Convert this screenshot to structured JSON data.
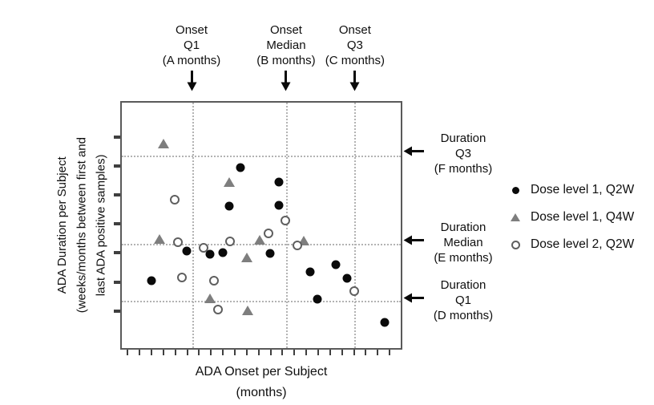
{
  "chart_data": {
    "type": "scatter",
    "title": "",
    "xlabel_line1": "ADA Onset per Subject",
    "xlabel_line2": "(months)",
    "ylabel_line1": "ADA Duration per Subject",
    "ylabel_line2": "(weeks/months between first and",
    "ylabel_line3": "last ADA positive samples)",
    "axis_note": "axes carry unlabeled tick marks only; point coordinates are percent of plot area, x from left edge, y from top edge",
    "tick_labels": "none",
    "series": [
      {
        "name": "Dose level 1, Q2W",
        "marker": "filled-circle",
        "color": "#0a0a0a",
        "points": [
          [
            10.5,
            72.6
          ],
          [
            23.3,
            60.3
          ],
          [
            31.5,
            61.9
          ],
          [
            36.1,
            61.0
          ],
          [
            38.6,
            42.3
          ],
          [
            42.6,
            26.5
          ],
          [
            53.1,
            61.6
          ],
          [
            56.3,
            32.3
          ],
          [
            56.3,
            41.9
          ],
          [
            67.6,
            69.0
          ],
          [
            70.2,
            80.0
          ],
          [
            76.7,
            66.1
          ],
          [
            80.7,
            71.6
          ],
          [
            94.3,
            89.7
          ]
        ]
      },
      {
        "name": "Dose level 1, Q4W",
        "marker": "filled-triangle",
        "color": "#7e7e7e",
        "points": [
          [
            13.6,
            55.5
          ],
          [
            14.8,
            16.8
          ],
          [
            31.5,
            79.7
          ],
          [
            38.4,
            32.3
          ],
          [
            44.9,
            63.2
          ],
          [
            45.2,
            84.8
          ],
          [
            49.4,
            55.8
          ],
          [
            65.1,
            56.1
          ]
        ]
      },
      {
        "name": "Dose level 2, Q2W",
        "marker": "open-circle",
        "color": "#ffffff",
        "stroke": "#5f5f5f",
        "points": [
          [
            19.0,
            39.7
          ],
          [
            20.2,
            56.8
          ],
          [
            21.6,
            71.3
          ],
          [
            29.3,
            59.0
          ],
          [
            33.0,
            72.6
          ],
          [
            34.4,
            84.2
          ],
          [
            38.9,
            56.5
          ],
          [
            52.6,
            53.2
          ],
          [
            58.5,
            48.1
          ],
          [
            62.8,
            58.1
          ],
          [
            83.2,
            76.8
          ]
        ]
      }
    ],
    "reference_lines": {
      "style": "dashed",
      "color": "#b3b3b3",
      "vertical_x_pct": [
        25.3,
        58.8,
        83.2
      ],
      "horizontal_y_pct": [
        21.6,
        57.4,
        80.6
      ]
    },
    "x_ticks": {
      "count": 23,
      "start_pct": 1.8,
      "step_pct": 4.27
    },
    "y_ticks": {
      "count": 7,
      "start_pct": 13.5,
      "step_pct": 11.78
    }
  },
  "annotations": {
    "top": [
      {
        "id": "onset-q1",
        "lines": [
          "Onset",
          "Q1",
          "(A months)"
        ],
        "arrow": "down"
      },
      {
        "id": "onset-median",
        "lines": [
          "Onset",
          "Median",
          "(B months)"
        ],
        "arrow": "down"
      },
      {
        "id": "onset-q3",
        "lines": [
          "Onset",
          "Q3",
          "(C months)"
        ],
        "arrow": "down"
      }
    ],
    "right": [
      {
        "id": "duration-q3",
        "lines": [
          "Duration",
          "Q3",
          "(F months)"
        ],
        "arrow": "left"
      },
      {
        "id": "duration-median",
        "lines": [
          "Duration",
          "Median",
          "(E months)"
        ],
        "arrow": "left"
      },
      {
        "id": "duration-q1",
        "lines": [
          "Duration",
          "Q1",
          "(D months)"
        ],
        "arrow": "left"
      }
    ]
  },
  "legend": {
    "items": [
      {
        "label": "Dose level 1, Q2W",
        "marker": "filled-circle"
      },
      {
        "label": "Dose level 1, Q4W",
        "marker": "filled-triangle"
      },
      {
        "label": "Dose level 2, Q2W",
        "marker": "open-circle"
      }
    ]
  },
  "colors": {
    "plot_border": "#5a5a5a",
    "gridline": "#b3b3b3",
    "tick": "#3f3f3f",
    "text": "#0f0f0f",
    "marker_black": "#0a0a0a",
    "marker_gray": "#7e7e7e",
    "open_circle_stroke": "#5f5f5f"
  }
}
